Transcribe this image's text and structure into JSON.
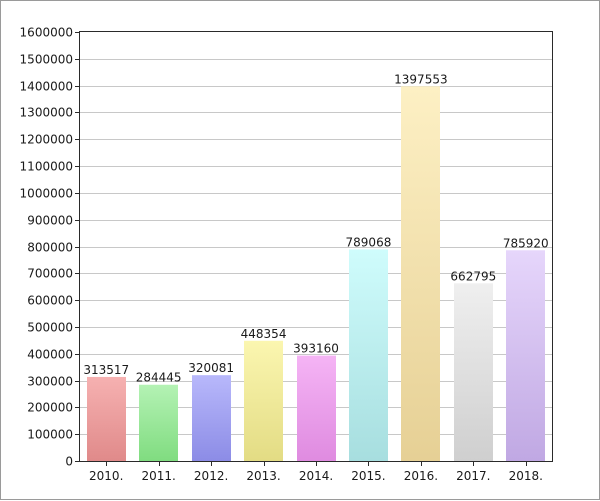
{
  "chart_data": {
    "type": "bar",
    "title": "",
    "xlabel": "",
    "ylabel": "",
    "categories": [
      "2010.",
      "2011.",
      "2012.",
      "2013.",
      "2014.",
      "2015.",
      "2016.",
      "2017.",
      "2018."
    ],
    "values": [
      313517,
      284445,
      320081,
      448354,
      393160,
      789068,
      1397553,
      662795,
      785920
    ],
    "value_labels": [
      "313517",
      "284445",
      "320081",
      "448354",
      "393160",
      "789068",
      "1397553",
      "662795",
      "785920"
    ],
    "ylim": [
      0,
      1600000
    ],
    "yticks": [
      0,
      100000,
      200000,
      300000,
      400000,
      500000,
      600000,
      700000,
      800000,
      900000,
      1000000,
      1100000,
      1200000,
      1300000,
      1400000,
      1500000,
      1600000
    ],
    "ytick_labels": [
      "0",
      "100000",
      "200000",
      "300000",
      "400000",
      "500000",
      "600000",
      "700000",
      "800000",
      "900000",
      "1000000",
      "1100000",
      "1200000",
      "1300000",
      "1400000",
      "1500000",
      "1600000"
    ],
    "grid": true,
    "legend": "none",
    "bar_colors": [
      [
        "#f6b1b1",
        "#e08a8a"
      ],
      [
        "#b4f2b4",
        "#80dc80"
      ],
      [
        "#b8b8fb",
        "#8c8ce6"
      ],
      [
        "#fbf6b0",
        "#e3dc84"
      ],
      [
        "#f5b4f5",
        "#df8be0"
      ],
      [
        "#cffcfc",
        "#a7dedf"
      ],
      [
        "#fdf0c4",
        "#e6d095"
      ],
      [
        "#efefef",
        "#cfcfcf"
      ],
      [
        "#e6d6fb",
        "#c0a8e3"
      ]
    ]
  }
}
